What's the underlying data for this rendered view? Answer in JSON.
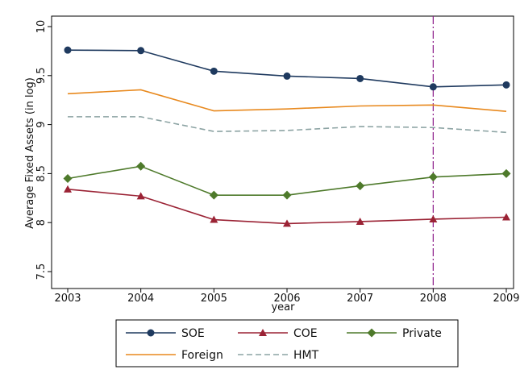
{
  "chart_data": {
    "type": "line",
    "xlabel": "year",
    "ylabel": "Average Fixed Assets (in log)",
    "x": [
      2003,
      2004,
      2005,
      2006,
      2007,
      2008,
      2009
    ],
    "xlim": [
      2003,
      2009
    ],
    "ylim": [
      7.5,
      10
    ],
    "xticks": [
      "2003",
      "2004",
      "2005",
      "2006",
      "2007",
      "2008",
      "2009"
    ],
    "yticks": [
      "7.5",
      "8",
      "8.5",
      "9",
      "9.5",
      "10"
    ],
    "grid": false,
    "legend_position": "bottom",
    "reference_line": {
      "x": 2008,
      "color": "#8B1A89",
      "style": "dash-dot"
    },
    "series": [
      {
        "name": "SOE",
        "color": "#1F3A5F",
        "marker": "circle",
        "dash": "solid",
        "values": [
          9.76,
          9.755,
          9.545,
          9.495,
          9.47,
          9.385,
          9.405
        ]
      },
      {
        "name": "COE",
        "color": "#9B2335",
        "marker": "triangle",
        "dash": "solid",
        "values": [
          8.34,
          8.27,
          8.03,
          7.99,
          8.01,
          8.035,
          8.055
        ]
      },
      {
        "name": "Private",
        "color": "#4E7A2B",
        "marker": "diamond",
        "dash": "solid",
        "values": [
          8.45,
          8.575,
          8.28,
          8.28,
          8.375,
          8.465,
          8.5
        ]
      },
      {
        "name": "Foreign",
        "color": "#E8891E",
        "marker": "none",
        "dash": "solid",
        "values": [
          9.315,
          9.355,
          9.14,
          9.16,
          9.19,
          9.2,
          9.135
        ]
      },
      {
        "name": "HMT",
        "color": "#8CA3A3",
        "marker": "none",
        "dash": "dashed",
        "values": [
          9.08,
          9.08,
          8.93,
          8.94,
          8.98,
          8.97,
          8.92
        ]
      }
    ]
  }
}
